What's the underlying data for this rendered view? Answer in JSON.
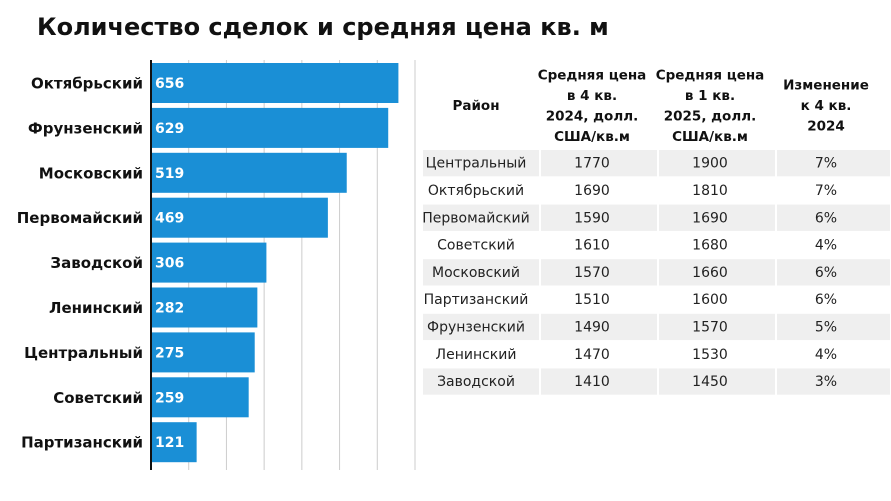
{
  "chart_data": {
    "type": "hbar",
    "title": "Количество сделок и средняя цена кв. м",
    "categories": [
      "Октябрьский",
      "Фрунзенский",
      "Московский",
      "Первомайский",
      "Заводской",
      "Ленинский",
      "Центральный",
      "Советский",
      "Партизанский"
    ],
    "values": [
      656,
      629,
      519,
      469,
      306,
      282,
      275,
      259,
      121
    ],
    "color": "#1a8fd6",
    "xlim": [
      0,
      700
    ],
    "xticks": [
      0,
      100,
      200,
      300,
      400,
      500,
      600,
      700
    ],
    "grid": true
  },
  "table": {
    "columns": [
      "Район",
      "Средняя цена в 4 кв. 2024, долл. США/кв.м",
      "Средняя цена в 1 кв. 2025, долл. США/кв.м",
      "Изменение к 4 кв. 2024"
    ],
    "rows": [
      [
        "Центральный",
        "1770",
        "1900",
        "7%"
      ],
      [
        "Октябрьский",
        "1690",
        "1810",
        "7%"
      ],
      [
        "Первомайский",
        "1590",
        "1690",
        "6%"
      ],
      [
        "Советский",
        "1610",
        "1680",
        "4%"
      ],
      [
        "Московский",
        "1570",
        "1660",
        "6%"
      ],
      [
        "Партизанский",
        "1510",
        "1600",
        "6%"
      ],
      [
        "Фрунзенский",
        "1490",
        "1570",
        "5%"
      ],
      [
        "Ленинский",
        "1470",
        "1530",
        "4%"
      ],
      [
        "Заводской",
        "1410",
        "1450",
        "3%"
      ]
    ]
  }
}
